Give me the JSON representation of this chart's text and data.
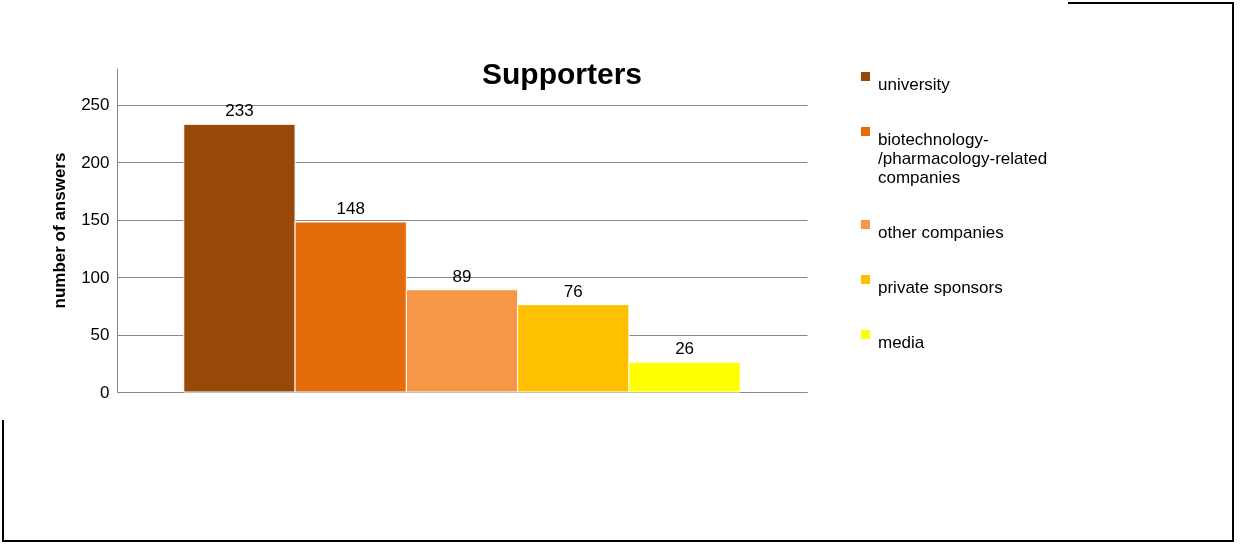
{
  "chart_data": {
    "type": "bar",
    "title": "Supporters",
    "ylabel": "number of answers",
    "categories": [
      null
    ],
    "series": [
      {
        "name": "university",
        "color": "#984807",
        "values": [
          233
        ]
      },
      {
        "name": "biotechnology-/pharmacology-related companies",
        "color": "#e46c0a",
        "values": [
          148
        ]
      },
      {
        "name": "other companies",
        "color": "#f79646",
        "values": [
          89
        ]
      },
      {
        "name": "private sponsors",
        "color": "#ffc000",
        "values": [
          76
        ]
      },
      {
        "name": "media",
        "color": "#ffff00",
        "values": [
          26
        ]
      }
    ],
    "ylim": [
      0,
      282
    ],
    "yticks": [
      0,
      50,
      100,
      150,
      200,
      250
    ],
    "grid": "y",
    "legend": "right",
    "data_labels": true,
    "tick_labels": "y"
  }
}
